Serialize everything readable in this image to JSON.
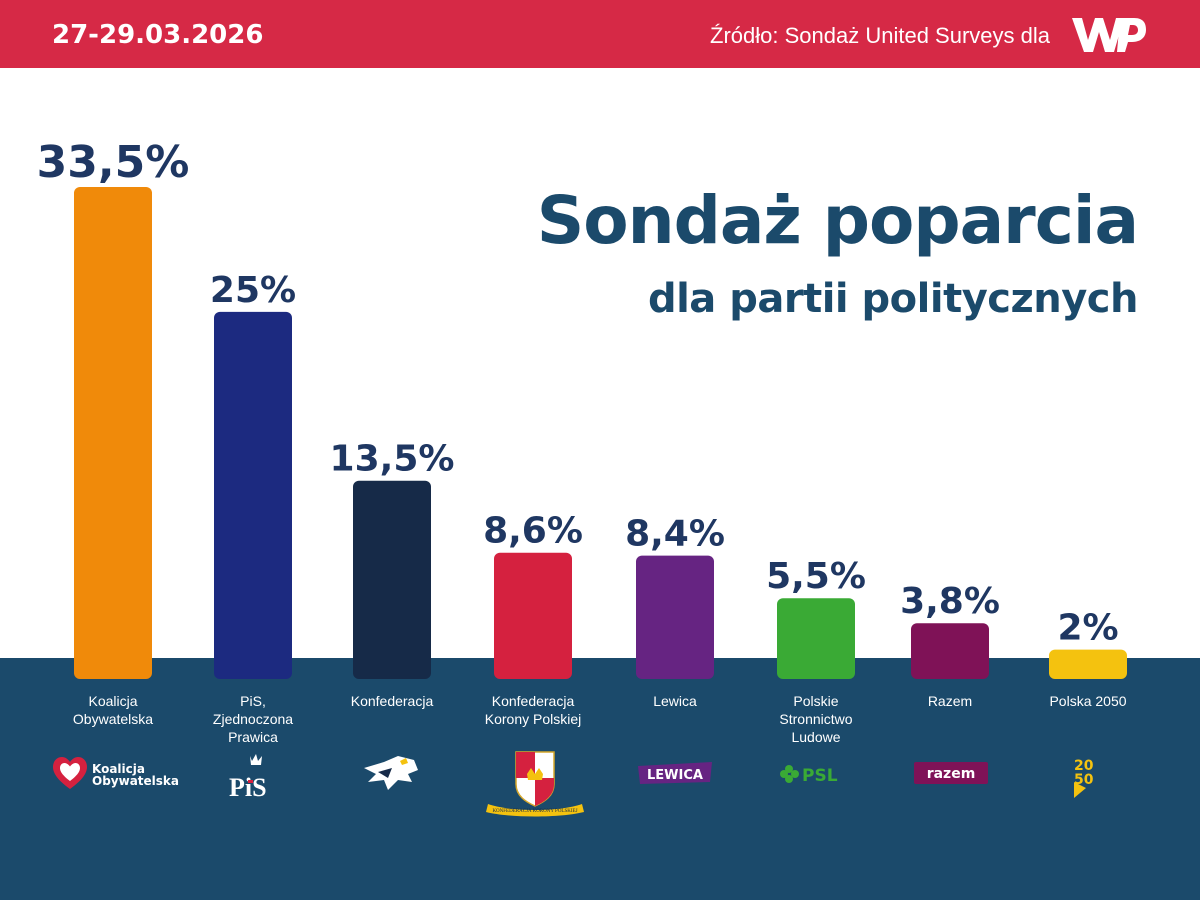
{
  "header": {
    "date": "27-29.03.2026",
    "source": "Źródło: Sondaż United Surveys dla",
    "logo": "WP"
  },
  "chart_data": {
    "type": "bar",
    "title": "Sondaż poparcia",
    "subtitle": "dla partii politycznych",
    "categories": [
      "Koalicja Obywatelska",
      "PiS, Zjednoczona Prawica",
      "Konfederacja",
      "Konfederacja Korony Polskiej",
      "Lewica",
      "Polskie Stronnictwo Ludowe",
      "Razem",
      "Polska 2050"
    ],
    "values": [
      33.5,
      25,
      13.5,
      8.6,
      8.4,
      5.5,
      3.8,
      2
    ],
    "value_labels": [
      "33,5%",
      "25%",
      "13,5%",
      "8,6%",
      "8,4%",
      "5,5%",
      "3,8%",
      "2%"
    ],
    "colors": [
      "#f08a0a",
      "#1c2a80",
      "#162a48",
      "#d5213f",
      "#662482",
      "#3aaa35",
      "#7f1257",
      "#f4c20f"
    ],
    "ylim": [
      0,
      33.5
    ],
    "grid": false,
    "xlabel": "",
    "ylabel": ""
  },
  "parties": [
    {
      "label_lines": [
        "Koalicja",
        "Obywatelska"
      ],
      "logo_icon": "koalicja-obywatelska-logo-icon",
      "logo_text": [
        "Koalicja",
        "Obywatelska"
      ]
    },
    {
      "label_lines": [
        "PiS,",
        "Zjednoczona",
        "Prawica"
      ],
      "logo_icon": "pis-logo-icon",
      "logo_text": [
        "PiS"
      ]
    },
    {
      "label_lines": [
        "Konfederacja"
      ],
      "logo_icon": "konfederacja-eagle-icon",
      "logo_text": []
    },
    {
      "label_lines": [
        "Konfederacja",
        "Korony Polskiej"
      ],
      "logo_icon": "korona-crest-icon",
      "logo_text": [
        "KONFEDERACJA KORONY POLSKIEJ"
      ]
    },
    {
      "label_lines": [
        "Lewica"
      ],
      "logo_icon": "lewica-logo-icon",
      "logo_text": [
        "LEWICA"
      ]
    },
    {
      "label_lines": [
        "Polskie",
        "Stronnictwo",
        "Ludowe"
      ],
      "logo_icon": "psl-clover-icon",
      "logo_text": [
        "PSL"
      ]
    },
    {
      "label_lines": [
        "Razem"
      ],
      "logo_icon": "razem-logo-icon",
      "logo_text": [
        "razem"
      ]
    },
    {
      "label_lines": [
        "Polska 2050"
      ],
      "logo_icon": "polska-2050-logo-icon",
      "logo_text": [
        "2050"
      ]
    }
  ]
}
